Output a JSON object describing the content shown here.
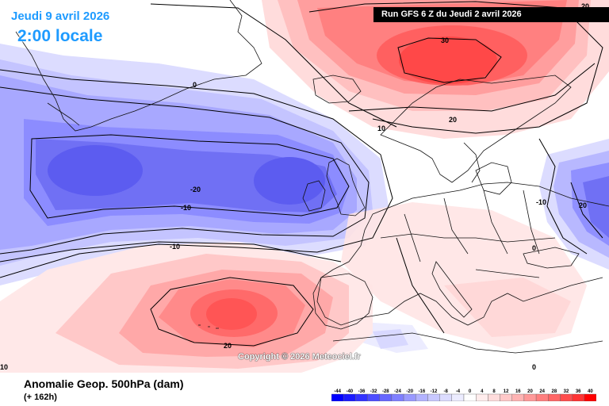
{
  "header": {
    "date_label": "Jeudi 9 avril 2026",
    "time_label": "2:00 locale",
    "run_label": "Run GFS 6 Z du Jeudi 2 avril 2026"
  },
  "copyright": "Copyright © 2026 Meteociel.fr",
  "footer": {
    "title": "Anomalie Geop. 500hPa (dam)",
    "subtitle": "(+ 162h)"
  },
  "contour_labels": [
    "20",
    "0",
    "30",
    "10",
    "20",
    "-20",
    "-10",
    "-10",
    "-10",
    "20",
    "0",
    "20",
    "0",
    "10"
  ],
  "legend": {
    "values": [
      "-44",
      "-40",
      "-36",
      "-32",
      "-28",
      "-24",
      "-20",
      "-16",
      "-12",
      "-8",
      "-4",
      "0",
      "4",
      "8",
      "12",
      "16",
      "20",
      "24",
      "28",
      "32",
      "36",
      "40"
    ],
    "colors": [
      "#0000ff",
      "#1a1aff",
      "#3333ff",
      "#4d4dff",
      "#6666ff",
      "#7f7fff",
      "#9999ff",
      "#b3b3ff",
      "#c8c8ff",
      "#dcdcff",
      "#ececff",
      "#ffffff",
      "#ffecec",
      "#ffdcdc",
      "#ffc8c8",
      "#ffb3b3",
      "#ff9999",
      "#ff7f7f",
      "#ff6666",
      "#ff4d4d",
      "#ff3333",
      "#ff0000"
    ]
  },
  "colors": {
    "title_blue": "#1e9bff",
    "positive": "#ff4d4d",
    "negative": "#5555ee"
  }
}
